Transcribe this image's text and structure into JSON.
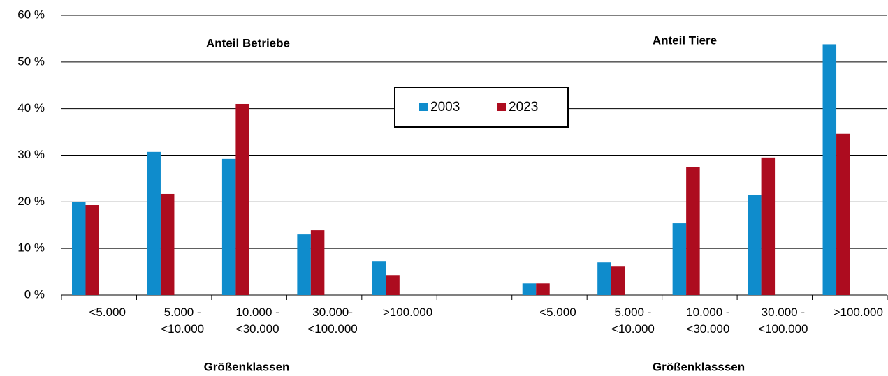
{
  "chart_data": {
    "type": "bar",
    "annotations": [
      "Anteil Betriebe",
      "Anteil Tiere"
    ],
    "xlabels": [
      "Größenklassen",
      "Größenklasssen"
    ],
    "categories": [
      "<5.000",
      "5.000 - <10.000",
      "10.000 - <30.000",
      "30.000- <100.000",
      ">100.000",
      null,
      "<5.000",
      "5.000 - <10.000",
      "10.000 - <30.000",
      "30.000 - <100.000",
      ">100.000"
    ],
    "series": [
      {
        "name": "2003",
        "color": "#0f8ccc",
        "values": [
          19.9,
          30.7,
          29.2,
          13.0,
          7.3,
          null,
          2.5,
          7.0,
          15.4,
          21.4,
          53.8
        ]
      },
      {
        "name": "2023",
        "color": "#ad0c1f",
        "values": [
          19.3,
          21.7,
          41.0,
          13.9,
          4.3,
          null,
          2.5,
          6.1,
          27.4,
          29.5,
          34.6
        ]
      }
    ],
    "ylim": [
      0,
      60
    ],
    "yticks": [
      {
        "value": 0,
        "label": "0 %"
      },
      {
        "value": 10,
        "label": "10 %"
      },
      {
        "value": 20,
        "label": "20 %"
      },
      {
        "value": 30,
        "label": "30 %"
      },
      {
        "value": 40,
        "label": "40 %"
      },
      {
        "value": 50,
        "label": "50 %"
      },
      {
        "value": 60,
        "label": "60 %"
      }
    ],
    "grid": true
  }
}
